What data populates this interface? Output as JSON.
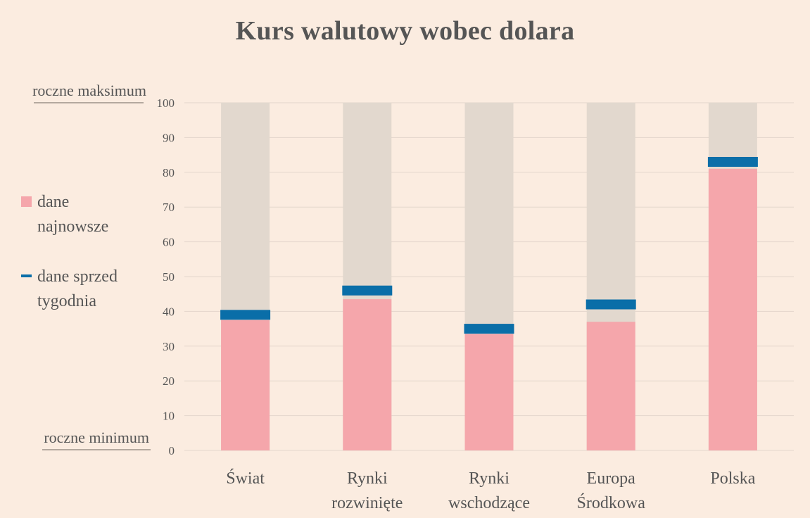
{
  "chart_data": {
    "type": "bar",
    "title": "Kurs walutowy wobec dolara",
    "categories": [
      [
        "Świat"
      ],
      [
        "Rynki",
        "rozwinięte"
      ],
      [
        "Rynki",
        "wschodzące"
      ],
      [
        "Europa",
        "Środkowa"
      ],
      [
        "Polska"
      ]
    ],
    "series": [
      {
        "name": "dane najnowsze",
        "values": [
          37.5,
          43.5,
          33.5,
          37,
          81
        ]
      },
      {
        "name": "dane sprzed tygodnia",
        "values": [
          39,
          46,
          35,
          42,
          83
        ]
      }
    ],
    "range_max": 100,
    "ylim": [
      0,
      100
    ],
    "yticks": [
      0,
      10,
      20,
      30,
      40,
      50,
      60,
      70,
      80,
      90,
      100
    ],
    "top_label": "roczne maksimum",
    "bottom_label": "roczne minimum",
    "legend": [
      {
        "lines": [
          "dane",
          "najnowsze"
        ],
        "marker": "square"
      },
      {
        "lines": [
          "dane sprzed",
          "tygodnia"
        ],
        "marker": "dash"
      }
    ],
    "legend_position": "left",
    "grid": true,
    "colors": {
      "background": "#fbece0",
      "range_bar": "#e2d8ce",
      "latest": "#f5a6ab",
      "week_ago": "#0a6ea8",
      "grid": "#e3d6cb",
      "text": "#555555"
    }
  }
}
